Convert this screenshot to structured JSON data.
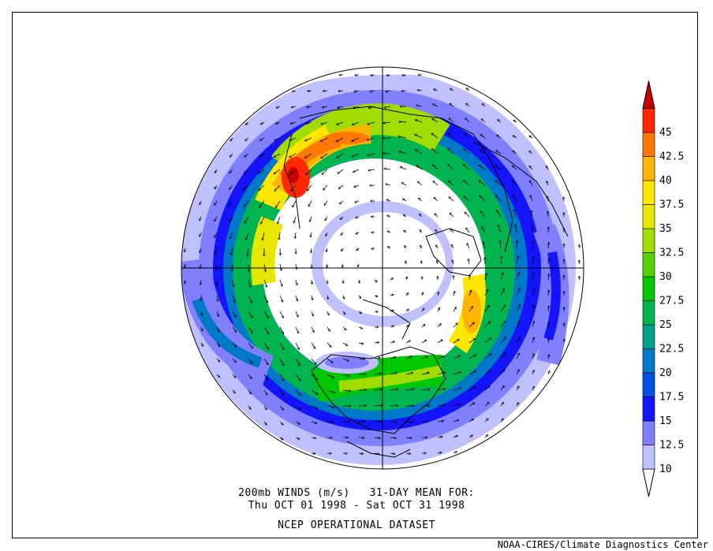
{
  "caption": {
    "line1": "200mb WINDS (m/s)   31-DAY MEAN FOR:",
    "line2": "Thu OCT 01 1998 - Sat OCT 31 1998",
    "line3": "NCEP OPERATIONAL DATASET"
  },
  "credit": "NOAA-CIRES/Climate Diagnostics Center",
  "colorbar": {
    "levels": [
      {
        "label": "10",
        "color": "#c0c0ff"
      },
      {
        "label": "12.5",
        "color": "#8080ff"
      },
      {
        "label": "15",
        "color": "#1414ff"
      },
      {
        "label": "17.5",
        "color": "#0050e6"
      },
      {
        "label": "20",
        "color": "#0078c8"
      },
      {
        "label": "22.5",
        "color": "#00a08c"
      },
      {
        "label": "25",
        "color": "#00b450"
      },
      {
        "label": "27.5",
        "color": "#00c800"
      },
      {
        "label": "30",
        "color": "#50d200"
      },
      {
        "label": "32.5",
        "color": "#a0dc00"
      },
      {
        "label": "35",
        "color": "#e6e600"
      },
      {
        "label": "37.5",
        "color": "#ffe600"
      },
      {
        "label": "40",
        "color": "#ffb400"
      },
      {
        "label": "42.5",
        "color": "#ff7800"
      },
      {
        "label": "45",
        "color": "#ff2800"
      }
    ],
    "min_color": "#ffffff",
    "max_color": "#c80000"
  }
}
